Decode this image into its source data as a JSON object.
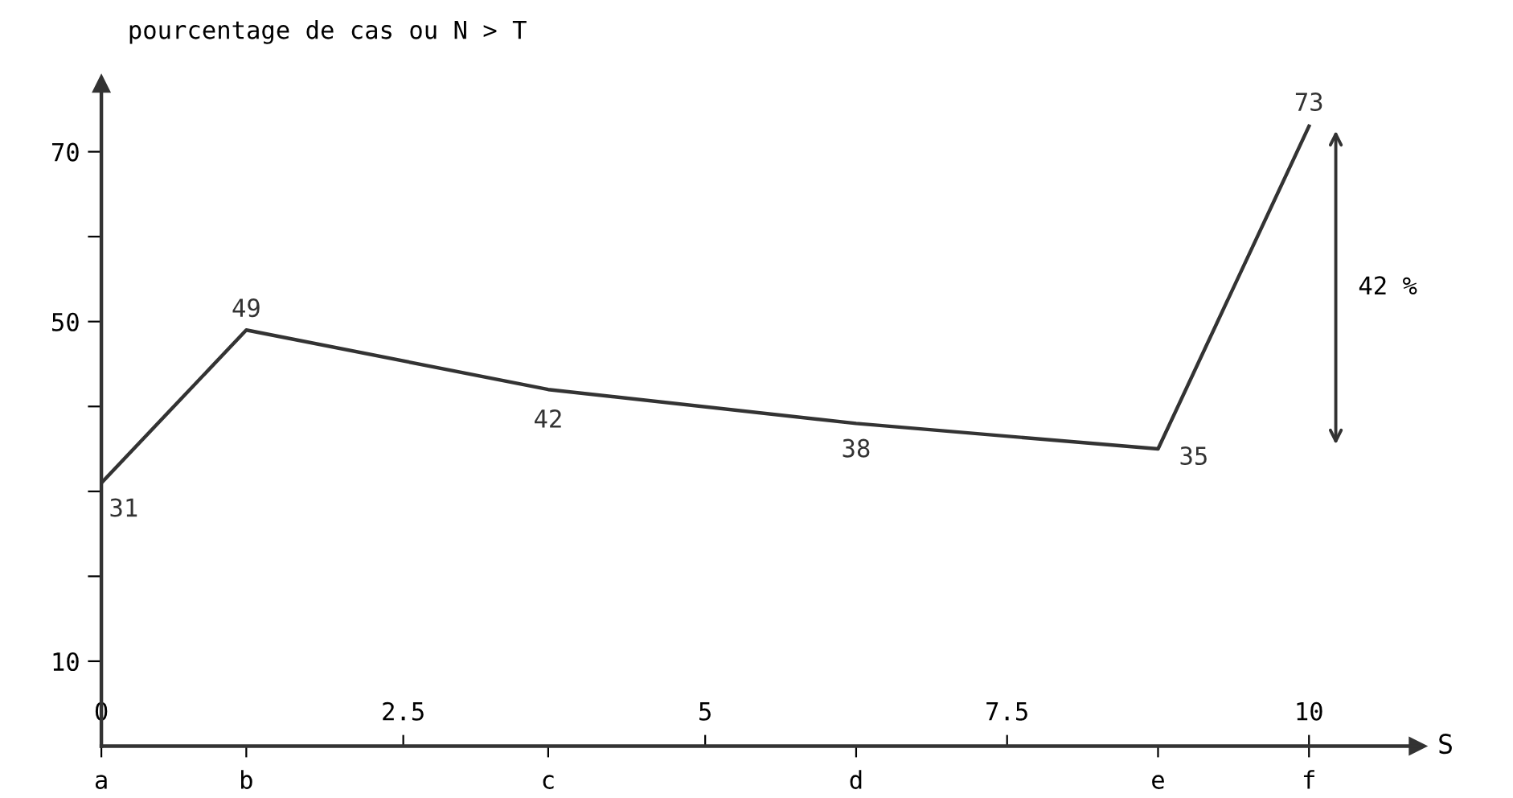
{
  "chart_data": {
    "type": "line",
    "ylabel": "pourcentage de cas ou N > T",
    "xlabel": "S",
    "x": [
      0,
      1.2,
      3.7,
      6.25,
      8.75,
      10
    ],
    "values": [
      31,
      49,
      42,
      38,
      35,
      73
    ],
    "color": "#333333",
    "data_labels": true,
    "marker": "none",
    "line_style": "solid",
    "grid": false,
    "xlim": [
      0,
      10.9
    ],
    "xticks": [
      0,
      2.5,
      5,
      7.5,
      10
    ],
    "ylim": [
      0,
      78
    ],
    "yticks": [
      10,
      {
        "value": 20,
        "label": null
      },
      {
        "value": 30,
        "label": null
      },
      {
        "value": 40,
        "label": null
      },
      50,
      {
        "value": 60,
        "label": null
      },
      70
    ],
    "annotations": [
      "a",
      "b",
      "c",
      "d",
      "e",
      "f",
      "42 %"
    ]
  }
}
